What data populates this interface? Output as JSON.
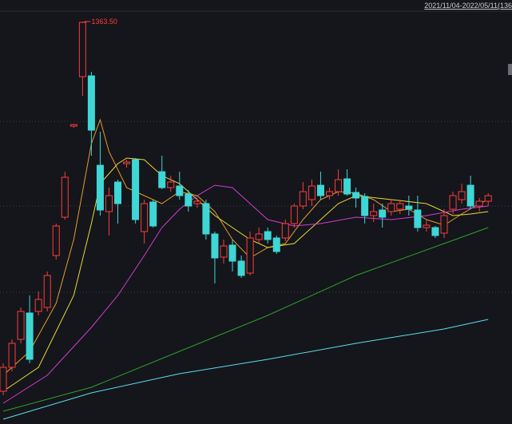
{
  "chart_data": {
    "type": "candlestick",
    "subtitle": "2021/11/04-2022/05/11(136",
    "annotation": {
      "value": 1363.5,
      "label": "1363.50"
    },
    "ylim": [
      859.5,
      1390.5
    ],
    "up_color": "#ff3b3b",
    "down_color": "#3fd6d6",
    "open": [
      900.5,
      930.5,
      965.5,
      998.5,
      1000.5,
      1005.5,
      1070.5,
      1118.5,
      1232.5,
      1294.5,
      1295.5,
      1183.5,
      1125.5,
      1162.5,
      1185.5,
      1190.5,
      1100.5,
      1137.5,
      1175.5,
      1155.5,
      1157.5,
      1147.5,
      1135.5,
      1135.5,
      1097.5,
      1068.5,
      1083.5,
      1063.5,
      1048.5,
      1090.5,
      1100.5,
      1092.5,
      1092.5,
      1110.5,
      1132.5,
      1140.5,
      1158.5,
      1145.5,
      1150.5,
      1166.5,
      1149.5,
      1144.5,
      1120.5,
      1127.5,
      1125.5,
      1128.5,
      1132.5,
      1127.5,
      1105.5,
      1105.5,
      1098.5,
      1128.5,
      1140.5,
      1158.5,
      1132.5,
      1138.5
    ],
    "high": [
      935.5,
      965.5,
      1005.5,
      1020.5,
      1025.5,
      1050.5,
      1110.5,
      1175.5,
      1235.5,
      1363.5,
      1300.5,
      1225.5,
      1155.5,
      1165.5,
      1190.5,
      1192.5,
      1140.5,
      1140.5,
      1195.5,
      1170.5,
      1175.5,
      1152.5,
      1142.5,
      1140.5,
      1100.5,
      1090.5,
      1090.5,
      1070.5,
      1100.5,
      1105.5,
      1105.5,
      1095.5,
      1115.5,
      1135.5,
      1162.5,
      1165.5,
      1175.5,
      1155.5,
      1178.5,
      1178.5,
      1155.5,
      1148.5,
      1135.5,
      1135.5,
      1140.5,
      1140.5,
      1145.5,
      1145.5,
      1115.5,
      1107.5,
      1128.5,
      1150.5,
      1160.5,
      1170.5,
      1142.5,
      1148.5
    ],
    "low": [
      895.5,
      925.5,
      960.5,
      935.5,
      995.5,
      1000.5,
      1065.5,
      1115.5,
      1230.5,
      1270.5,
      1195.5,
      1120.5,
      1095.5,
      1110.5,
      1180.5,
      1110.5,
      1085.5,
      1105.5,
      1153.5,
      1150.5,
      1140.5,
      1125.5,
      1130.5,
      1090.5,
      1035.5,
      1060.5,
      1050.5,
      1042.5,
      1045.5,
      1085.5,
      1085.5,
      1072.5,
      1088.5,
      1105.5,
      1128.5,
      1132.5,
      1140.5,
      1140.5,
      1145.5,
      1145.5,
      1130.5,
      1110.5,
      1112.5,
      1105.5,
      1120.5,
      1122.5,
      1120.5,
      1100.5,
      1100.5,
      1092.5,
      1092.5,
      1122.5,
      1135.5,
      1128.5,
      1125.5,
      1132.5
    ],
    "close": [
      930.5,
      960.5,
      1000.5,
      940.5,
      1015.5,
      1045.5,
      1107.5,
      1168.5,
      1234.5,
      1362.5,
      1227.5,
      1127.5,
      1145.5,
      1135.5,
      1187.5,
      1115.5,
      1135.5,
      1107.5,
      1155.5,
      1162.5,
      1145.5,
      1132.5,
      1138.5,
      1097.5,
      1067.5,
      1082.5,
      1063.5,
      1045.5,
      1092.5,
      1097.5,
      1090.5,
      1075.5,
      1110.5,
      1132.5,
      1150.5,
      1157.5,
      1145.5,
      1150.5,
      1165.5,
      1147.5,
      1142.5,
      1120.5,
      1125.5,
      1118.5,
      1135.5,
      1135.5,
      1128.5,
      1105.5,
      1108.5,
      1095.5,
      1120.5,
      1145.5,
      1150.5,
      1132.5,
      1138.5,
      1145.5
    ],
    "series": [
      {
        "color": "#e89a2c",
        "x": [
          0,
          3,
          6,
          8,
          10,
          11,
          12,
          14,
          16,
          18,
          20,
          22,
          24,
          26,
          28,
          30,
          32,
          34,
          36,
          38,
          40,
          42,
          44,
          46,
          48,
          50,
          52,
          54,
          55
        ],
        "values": [
          920.5,
          950.5,
          1010.5,
          1090.5,
          1210.5,
          1240.5,
          1200.5,
          1155.5,
          1145.5,
          1135.5,
          1150.5,
          1145.5,
          1125.5,
          1090.5,
          1067.5,
          1080.5,
          1085.5,
          1115.5,
          1140.5,
          1150.5,
          1148.5,
          1140.5,
          1125.5,
          1128.5,
          1115.5,
          1108.5,
          1122.5,
          1135.5,
          1140.5
        ]
      },
      {
        "color": "#e8d83a",
        "x": [
          0,
          4,
          8,
          10,
          11,
          13,
          14,
          16,
          18,
          20,
          22,
          24,
          26,
          28,
          30,
          33,
          35,
          38,
          40,
          44,
          48,
          51,
          53,
          55
        ],
        "values": [
          900.5,
          930.5,
          1020.5,
          1110.5,
          1160.5,
          1185.5,
          1192.5,
          1190.5,
          1170.5,
          1160.5,
          1140.5,
          1120.5,
          1105.5,
          1090.5,
          1080.5,
          1085.5,
          1105.5,
          1135.5,
          1145.5,
          1140.5,
          1135.5,
          1120.5,
          1122.5,
          1125.5
        ]
      },
      {
        "color": "#d23cd2",
        "x": [
          0,
          5,
          10,
          13,
          16,
          18,
          20,
          22,
          24,
          26,
          28,
          30,
          33,
          36,
          40,
          44,
          48,
          52,
          55
        ],
        "values": [
          885.5,
          920.5,
          980.5,
          1020.5,
          1070.5,
          1105.5,
          1128.5,
          1145.5,
          1158.5,
          1155.5,
          1135.5,
          1115.5,
          1107.5,
          1110.5,
          1118.5,
          1115.5,
          1120.5,
          1128.5,
          1132.5
        ]
      },
      {
        "color": "#2fa02f",
        "x": [
          0,
          10,
          20,
          30,
          40,
          50,
          55
        ],
        "values": [
          875.5,
          905.5,
          950.5,
          995.5,
          1045.5,
          1085.5,
          1105.5
        ]
      },
      {
        "color": "#5fdcec",
        "x": [
          0,
          10,
          20,
          30,
          40,
          50,
          55
        ],
        "values": [
          865.5,
          898.5,
          922.5,
          940.5,
          960.5,
          978.5,
          990.5
        ]
      }
    ]
  }
}
